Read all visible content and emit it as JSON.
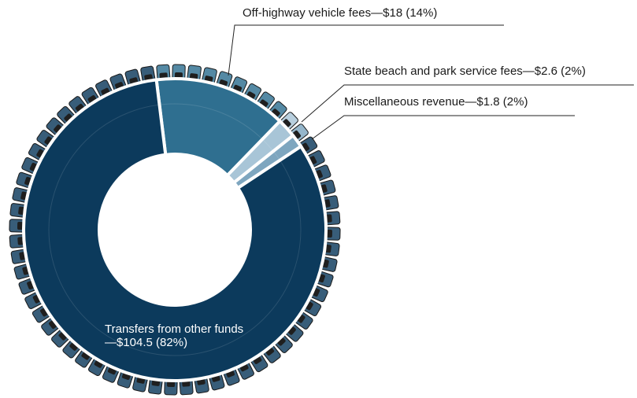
{
  "chart_data": {
    "type": "pie",
    "categories": [
      "Off-highway vehicle fees—$18 (14%)",
      "State beach and park service fees—$2.6 (2%)",
      "Miscellaneous revenue—$1.8 (2%)",
      "Transfers from other funds—$104.5 (82%)"
    ],
    "values": [
      18,
      2.6,
      1.8,
      104.5
    ],
    "colors": [
      "#2f6f90",
      "#a8c5d7",
      "#7ea6bf",
      "#0c3a5c"
    ]
  }
}
